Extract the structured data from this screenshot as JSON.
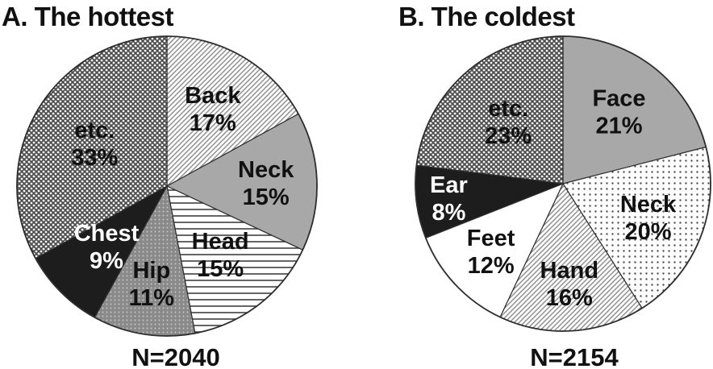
{
  "figure": {
    "background": "#ffffff"
  },
  "palette": {
    "solid_gray": "#a8a8a8",
    "solid_dark": "#1d1d1d",
    "white": "#ffffff",
    "outline": "#2e2e2e",
    "hatch_line": "#8f8f8f",
    "cross_line": "#4c4c4c",
    "horizontal_line": "#3f3f3f",
    "fine_dot": "#4f4f4f",
    "hip_base": "#8a8a8a",
    "hip_dot": "#c8c8c8",
    "text_dark": "#111111",
    "text_light": "#ffffff"
  },
  "chart_data": [
    {
      "type": "pie",
      "title": "A. The hottest",
      "n_label": "N=2040",
      "start_angle_deg": 0,
      "direction": "clockwise",
      "total": 100,
      "slices": [
        {
          "label": "Back",
          "value": 17,
          "pct_label": "17%",
          "pattern": "diagonal-hatch",
          "text_color": "#111111",
          "label_r": 0.6
        },
        {
          "label": "Neck",
          "value": 15,
          "pct_label": "15%",
          "pattern": "solid-gray",
          "text_color": "#111111",
          "label_r": 0.66
        },
        {
          "label": "Head",
          "value": 15,
          "pct_label": "15%",
          "pattern": "horizontal-lines",
          "text_color": "#111111",
          "label_r": 0.58
        },
        {
          "label": "Hip",
          "value": 11,
          "pct_label": "11%",
          "pattern": "dot-shade-gray",
          "text_color": "#111111",
          "label_r": 0.66
        },
        {
          "label": "Chest",
          "value": 9,
          "pct_label": "9%",
          "pattern": "solid-dark",
          "text_color": "#ffffff",
          "label_r": 0.57
        },
        {
          "label": "etc.",
          "value": 33,
          "pct_label": "33%",
          "pattern": "crosshatch",
          "text_color": "#111111",
          "label_r": 0.56
        }
      ]
    },
    {
      "type": "pie",
      "title": "B. The coldest",
      "n_label": "N=2154",
      "start_angle_deg": 0,
      "direction": "clockwise",
      "total": 100,
      "slices": [
        {
          "label": "Face",
          "value": 21,
          "pct_label": "21%",
          "pattern": "solid-gray",
          "text_color": "#111111",
          "label_r": 0.62
        },
        {
          "label": "Neck",
          "value": 20,
          "pct_label": "20%",
          "pattern": "fine-dots",
          "text_color": "#111111",
          "label_r": 0.62
        },
        {
          "label": "Hand",
          "value": 16,
          "pct_label": "16%",
          "pattern": "diagonal-hatch",
          "text_color": "#111111",
          "label_r": 0.68
        },
        {
          "label": "Feet",
          "value": 12,
          "pct_label": "12%",
          "pattern": "white",
          "text_color": "#111111",
          "label_r": 0.67
        },
        {
          "label": "Ear",
          "value": 8,
          "pct_label": "8%",
          "pattern": "solid-dark",
          "text_color": "#ffffff",
          "label_r": 0.78
        },
        {
          "label": "etc.",
          "value": 23,
          "pct_label": "23%",
          "pattern": "crosshatch",
          "text_color": "#111111",
          "label_r": 0.56
        }
      ]
    }
  ]
}
